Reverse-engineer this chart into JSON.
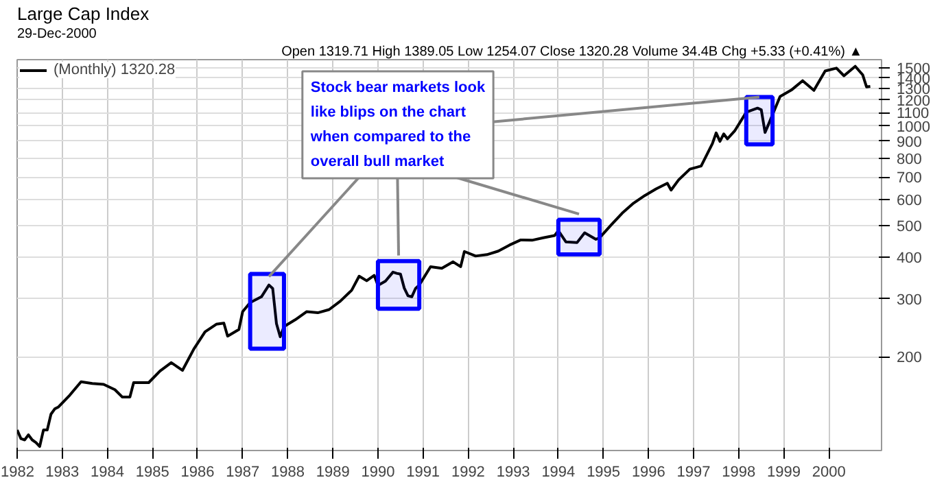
{
  "chart_data": {
    "type": "line",
    "title": "Large Cap Index",
    "annotations": [
      "29-Dec-2000",
      "Open 1319.71  High 1389.05  Low 1254.07  Close 1320.28  Volume 34.4B  Chg +5.33 (+0.41%) ▲",
      {
        "text": "Stock bear markets look like blips on the chart when compared to the overall bull market",
        "x": "1987-08",
        "y": 350
      }
    ],
    "series": [
      {
        "name": "(Monthly) 1320.28",
        "color": "#000000",
        "x": [
          "1982-01",
          "1982-02",
          "1982-03",
          "1982-04",
          "1982-05",
          "1982-06",
          "1982-07",
          "1982-08",
          "1982-09",
          "1982-10",
          "1982-11",
          "1982-12",
          "1983-03",
          "1983-06",
          "1983-09",
          "1983-12",
          "1984-03",
          "1984-05",
          "1984-07",
          "1984-08",
          "1984-12",
          "1985-03",
          "1985-06",
          "1985-09",
          "1985-12",
          "1986-03",
          "1986-06",
          "1986-08",
          "1986-09",
          "1986-12",
          "1987-01",
          "1987-03",
          "1987-06",
          "1987-08",
          "1987-09",
          "1987-10",
          "1987-11",
          "1987-12",
          "1988-03",
          "1988-06",
          "1988-09",
          "1988-12",
          "1989-03",
          "1989-06",
          "1989-08",
          "1989-10",
          "1989-12",
          "1990-01",
          "1990-03",
          "1990-05",
          "1990-06",
          "1990-07",
          "1990-08",
          "1990-09",
          "1990-10",
          "1990-11",
          "1990-12",
          "1991-03",
          "1991-06",
          "1991-09",
          "1991-11",
          "1991-12",
          "1992-03",
          "1992-06",
          "1992-09",
          "1992-12",
          "1993-03",
          "1993-06",
          "1993-09",
          "1993-12",
          "1994-01",
          "1994-03",
          "1994-06",
          "1994-08",
          "1994-11",
          "1994-12",
          "1995-03",
          "1995-06",
          "1995-09",
          "1995-12",
          "1996-03",
          "1996-06",
          "1996-07",
          "1996-09",
          "1996-12",
          "1997-03",
          "1997-06",
          "1997-07",
          "1997-08",
          "1997-09",
          "1997-10",
          "1997-12",
          "1998-03",
          "1998-06",
          "1998-07",
          "1998-08",
          "1998-09",
          "1998-12",
          "1999-03",
          "1999-06",
          "1999-09",
          "1999-12",
          "2000-03",
          "2000-05",
          "2000-08",
          "2000-10",
          "2000-11",
          "2000-12"
        ],
        "values": [
          120,
          113,
          112,
          116,
          112,
          110,
          107,
          120,
          120,
          134,
          139,
          141,
          153,
          168,
          166,
          165,
          159,
          151,
          151,
          167,
          167,
          181,
          192,
          182,
          211,
          238,
          251,
          253,
          231,
          242,
          274,
          292,
          304,
          330,
          322,
          252,
          230,
          247,
          259,
          274,
          272,
          278,
          295,
          318,
          351,
          340,
          353,
          329,
          339,
          361,
          358,
          356,
          323,
          306,
          304,
          322,
          330,
          375,
          371,
          388,
          375,
          417,
          404,
          408,
          418,
          436,
          452,
          451,
          459,
          466,
          482,
          446,
          444,
          475,
          454,
          459,
          501,
          545,
          584,
          616,
          645,
          671,
          640,
          687,
          741,
          757,
          885,
          954,
          899,
          947,
          915,
          970,
          1102,
          1134,
          1121,
          957,
          1017,
          1229,
          1286,
          1373,
          1283,
          1469,
          1499,
          1421,
          1518,
          1429,
          1315,
          1320
        ]
      }
    ],
    "bands": [
      {
        "axis": "x",
        "from": "1987-03",
        "to": "1987-12",
        "color": "#0000ff"
      },
      {
        "axis": "x",
        "from": "1990-01",
        "to": "1990-12",
        "color": "#0000ff"
      },
      {
        "axis": "x",
        "from": "1994-01",
        "to": "1994-12",
        "color": "#0000ff"
      },
      {
        "axis": "x",
        "from": "1998-03",
        "to": "1998-10",
        "color": "#0000ff"
      }
    ],
    "log": "y",
    "ylim": [
      104,
      1590
    ],
    "yticks": [
      200,
      300,
      400,
      500,
      600,
      700,
      800,
      900,
      1000,
      1100,
      1200,
      1300,
      1400,
      1500
    ],
    "xlim": [
      "1982-01",
      "2001-03"
    ],
    "xticks": [
      {
        "value": "1982-01",
        "label": "1982"
      },
      {
        "value": "1983-01",
        "label": "1983"
      },
      {
        "value": "1984-01",
        "label": "1984"
      },
      {
        "value": "1985-01",
        "label": "1985"
      },
      {
        "value": "1986-01",
        "label": "1986"
      },
      {
        "value": "1987-01",
        "label": "1987"
      },
      {
        "value": "1988-01",
        "label": "1988"
      },
      {
        "value": "1989-01",
        "label": "1989"
      },
      {
        "value": "1990-01",
        "label": "1990"
      },
      {
        "value": "1991-01",
        "label": "1991"
      },
      {
        "value": "1992-01",
        "label": "1992"
      },
      {
        "value": "1993-01",
        "label": "1993"
      },
      {
        "value": "1994-01",
        "label": "1994"
      },
      {
        "value": "1995-01",
        "label": "1995"
      },
      {
        "value": "1996-01",
        "label": "1996"
      },
      {
        "value": "1997-01",
        "label": "1997"
      },
      {
        "value": "1998-01",
        "label": "1998"
      },
      {
        "value": "1999-01",
        "label": "1999"
      },
      {
        "value": "2000-01",
        "label": "2000"
      }
    ],
    "grid": true,
    "legend": "top left"
  }
}
